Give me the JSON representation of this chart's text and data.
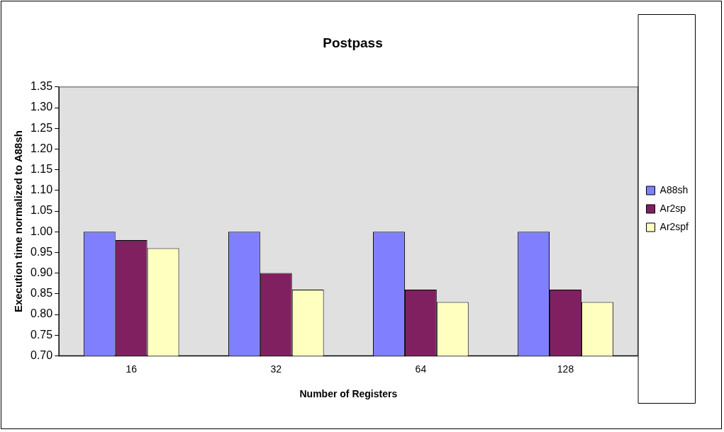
{
  "chart_data": {
    "type": "bar",
    "title": "Postpass",
    "xlabel": "Number of Registers",
    "ylabel": "Execution time normalized to A88sh",
    "categories": [
      "16",
      "32",
      "64",
      "128"
    ],
    "series": [
      {
        "name": "A88sh",
        "color": "#8080ff",
        "values": [
          1.0,
          1.0,
          1.0,
          1.0
        ]
      },
      {
        "name": "Ar2sp",
        "color": "#802060",
        "values": [
          0.98,
          0.9,
          0.86,
          0.86
        ]
      },
      {
        "name": "Ar2spf",
        "color": "#ffffc0",
        "values": [
          0.96,
          0.86,
          0.83,
          0.83
        ]
      }
    ],
    "ylim": [
      0.7,
      1.35
    ],
    "yticks": [
      {
        "value": 0.7,
        "label": "0.70"
      },
      {
        "value": 0.75,
        "label": "0.75"
      },
      {
        "value": 0.8,
        "label": "0.80"
      },
      {
        "value": 0.85,
        "label": "0.85"
      },
      {
        "value": 0.9,
        "label": "0.90"
      },
      {
        "value": 0.95,
        "label": "0.95"
      },
      {
        "value": 1.0,
        "label": "1.00"
      },
      {
        "value": 1.05,
        "label": "1.05"
      },
      {
        "value": 1.1,
        "label": "1.10"
      },
      {
        "value": 1.15,
        "label": "1.15"
      },
      {
        "value": 1.2,
        "label": "1.20"
      },
      {
        "value": 1.25,
        "label": "1.25"
      },
      {
        "value": 1.3,
        "label": "1.30"
      },
      {
        "value": 1.35,
        "label": "1.35"
      }
    ],
    "grid": false,
    "legend": "right"
  }
}
